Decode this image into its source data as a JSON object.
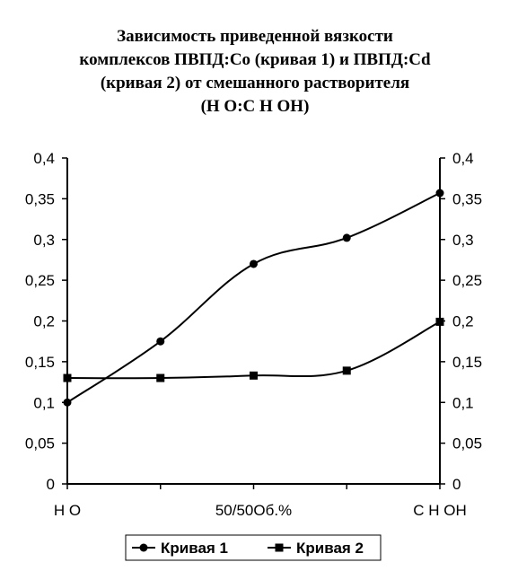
{
  "chart_data": {
    "type": "line",
    "title_lines": [
      "Зависимость приведенной вязкости",
      "комплексов ПВПД:Со (кривая 1) и ПВПД:Cd",
      "(кривая 2) от смешанного растворителя",
      "(Н  О:С Н ОН)"
    ],
    "categories": [
      "Н О",
      "",
      "50/50Об.%",
      "",
      "С Н ОН"
    ],
    "ylim": [
      0,
      0.4
    ],
    "yticks": [
      "0",
      "0,05",
      "0,1",
      "0,15",
      "0,2",
      "0,25",
      "0,3",
      "0,35",
      "0,4"
    ],
    "ytick_values": [
      0,
      0.05,
      0.1,
      0.15,
      0.2,
      0.25,
      0.3,
      0.35,
      0.4
    ],
    "secondary_yaxis": true,
    "grid": false,
    "legend_position": "bottom",
    "series": [
      {
        "name": "Кривая 1",
        "marker": "circle",
        "color": "#000000",
        "values": [
          0.1,
          0.175,
          0.27,
          0.302,
          0.357
        ]
      },
      {
        "name": "Кривая 2",
        "marker": "square",
        "color": "#000000",
        "values": [
          0.13,
          0.13,
          0.133,
          0.139,
          0.199
        ]
      }
    ]
  }
}
